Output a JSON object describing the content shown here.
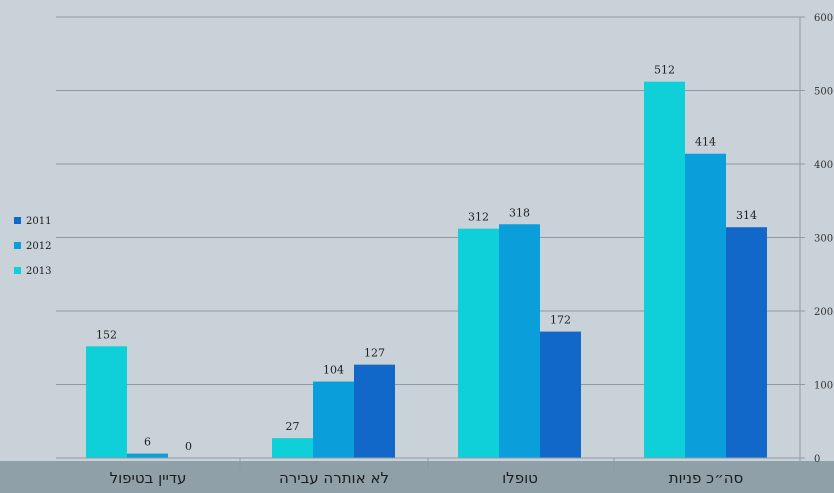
{
  "chart_data": {
    "type": "bar",
    "categories": [
      "סה״כ פניות",
      "טופלו",
      "לא אותרה עבירה",
      "עדיין בטיפול"
    ],
    "series": [
      {
        "name": "2013",
        "values": [
          512,
          312,
          27,
          152
        ],
        "color": "#0fcfd9"
      },
      {
        "name": "2012",
        "values": [
          414,
          318,
          104,
          6
        ],
        "color": "#0a9fdb"
      },
      {
        "name": "2011",
        "values": [
          314,
          172,
          127,
          0
        ],
        "color": "#1268c8"
      }
    ],
    "legend_order": [
      "2011",
      "2012",
      "2013"
    ],
    "legend_position": "left",
    "ylim": [
      0,
      600
    ],
    "yticks": [
      "0",
      "100",
      "200",
      "300",
      "400",
      "500",
      "600"
    ],
    "y_axis_side": "right",
    "grid": true,
    "title": "",
    "xlabel": "",
    "ylabel": ""
  }
}
